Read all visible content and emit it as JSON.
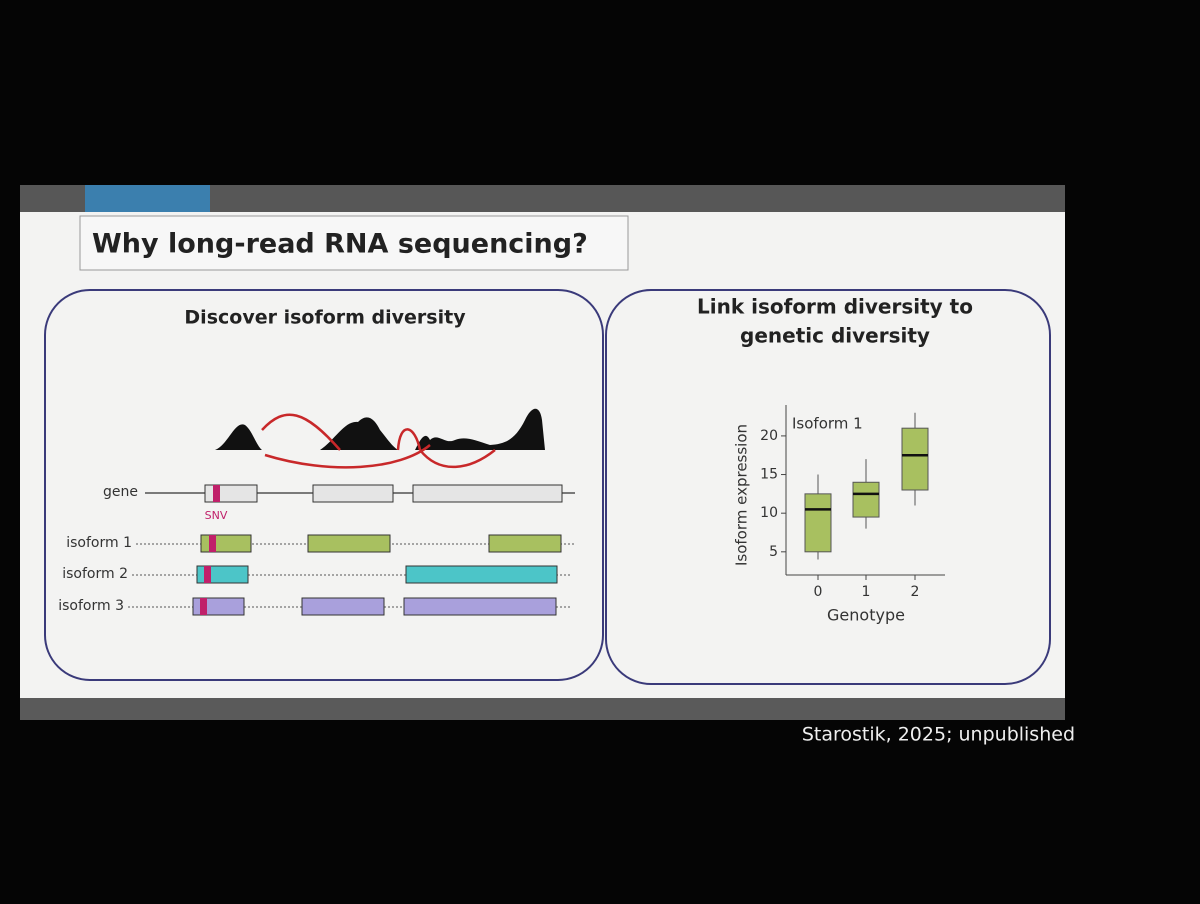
{
  "slide": {
    "title": "Why long-read RNA sequencing?",
    "left_panel": {
      "title": "Discover isoform diversity",
      "gene_label": "gene",
      "snv_label": "SNV",
      "isoforms": [
        "isoform 1",
        "isoform 2",
        "isoform 3"
      ]
    },
    "right_panel": {
      "title_lines": [
        "Link isoform diversity to",
        "genetic diversity"
      ]
    },
    "footer": "Starostik, 2025; unpublished"
  },
  "chart_data": {
    "type": "box",
    "title": "Isoform 1",
    "xlabel": "Genotype",
    "ylabel": "Isoform expression",
    "categories": [
      "0",
      "1",
      "2"
    ],
    "color": "#a8c060",
    "boxes": [
      {
        "whislo": 4,
        "q1": 5,
        "med": 10.5,
        "q3": 12.5,
        "whishi": 15
      },
      {
        "whislo": 8,
        "q1": 9.5,
        "med": 12.5,
        "q3": 14,
        "whishi": 17
      },
      {
        "whislo": 11,
        "q1": 13,
        "med": 17.5,
        "q3": 21,
        "whishi": 23
      }
    ],
    "ylim": [
      2,
      24
    ],
    "yticks": [
      5,
      10,
      15,
      20
    ]
  }
}
